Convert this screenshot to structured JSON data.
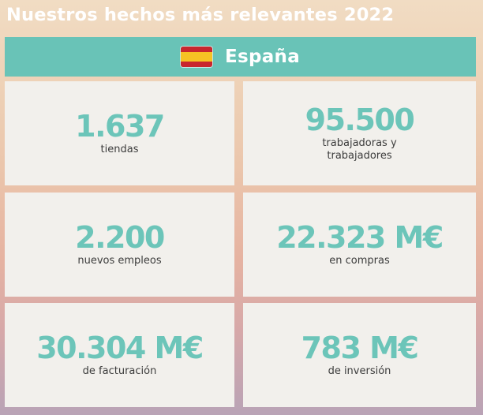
{
  "title": "Nuestros hechos más relevantes 2022",
  "banner": {
    "label": "España",
    "flag_icon": "spain-flag-icon",
    "color": "#69c3b7"
  },
  "stats": [
    {
      "value": "1.637",
      "label": "tiendas"
    },
    {
      "value": "95.500",
      "label": "trabajadoras y trabajadores"
    },
    {
      "value": "2.200",
      "label": "nuevos empleos"
    },
    {
      "value": "22.323 M€",
      "label": "en compras"
    },
    {
      "value": "30.304 M€",
      "label": "de facturación"
    },
    {
      "value": "783 M€",
      "label": "de inversión"
    }
  ],
  "colors": {
    "accent": "#6cc5b9",
    "card_background": "#f2f0ec",
    "title_text": "#ffffff"
  }
}
